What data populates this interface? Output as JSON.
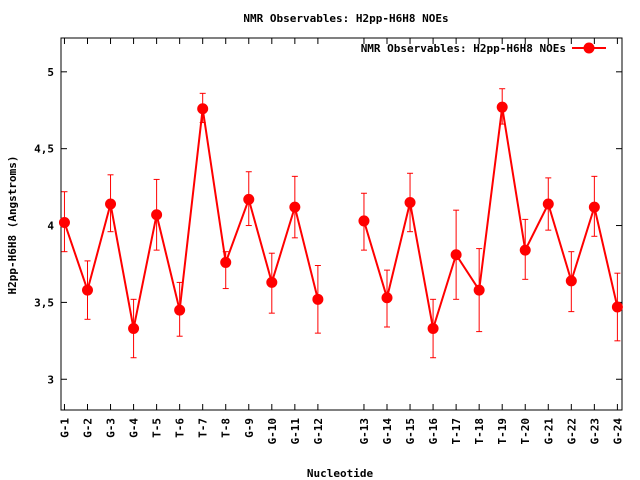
{
  "chart_data": {
    "type": "line",
    "title": "NMR Observables: H2pp-H6H8 NOEs",
    "xlabel": "Nucleotide",
    "ylabel": "H2pp-H6H8 (Angstroms)",
    "ylim": [
      2.8,
      5.22
    ],
    "yticks": [
      3,
      3.5,
      4,
      4.5,
      5
    ],
    "ytick_labels": [
      "3",
      "3,5",
      "4",
      "4,5",
      "5"
    ],
    "grid": false,
    "legend_position": "top-right",
    "x": [
      1,
      2,
      3,
      4,
      5,
      6,
      7,
      8,
      9,
      10,
      11,
      12,
      14,
      15,
      16,
      17,
      18,
      19,
      20,
      21,
      22,
      23,
      24,
      25
    ],
    "xlim": [
      0.85,
      25.2
    ],
    "categories": [
      "G-1",
      "G-2",
      "G-3",
      "G-4",
      "T-5",
      "T-6",
      "T-7",
      "T-8",
      "G-9",
      "G-10",
      "G-11",
      "G-12",
      "G-13",
      "G-14",
      "G-15",
      "G-16",
      "T-17",
      "T-18",
      "T-19",
      "T-20",
      "G-21",
      "G-22",
      "G-23",
      "G-24"
    ],
    "series": [
      {
        "name": "NMR Observables: H2pp-H6H8 NOEs",
        "color": "#ff0000",
        "segments": [
          [
            0,
            11
          ],
          [
            12,
            23
          ]
        ],
        "values": [
          4.02,
          3.58,
          4.14,
          3.33,
          4.07,
          3.45,
          4.76,
          3.76,
          4.17,
          3.63,
          4.12,
          3.52,
          4.03,
          3.53,
          4.15,
          3.33,
          3.81,
          3.58,
          4.77,
          3.84,
          4.14,
          3.64,
          4.12,
          3.47
        ],
        "err_low": [
          3.83,
          3.39,
          3.96,
          3.14,
          3.84,
          3.28,
          4.67,
          3.59,
          4.0,
          3.43,
          3.92,
          3.3,
          3.84,
          3.34,
          3.96,
          3.14,
          3.52,
          3.31,
          4.66,
          3.65,
          3.97,
          3.44,
          3.93,
          3.25
        ],
        "err_high": [
          4.22,
          3.77,
          4.33,
          3.52,
          4.3,
          3.63,
          4.86,
          3.83,
          4.35,
          3.82,
          4.32,
          3.74,
          4.21,
          3.71,
          4.34,
          3.52,
          4.1,
          3.85,
          4.89,
          4.04,
          4.31,
          3.83,
          4.32,
          3.69
        ]
      }
    ]
  }
}
